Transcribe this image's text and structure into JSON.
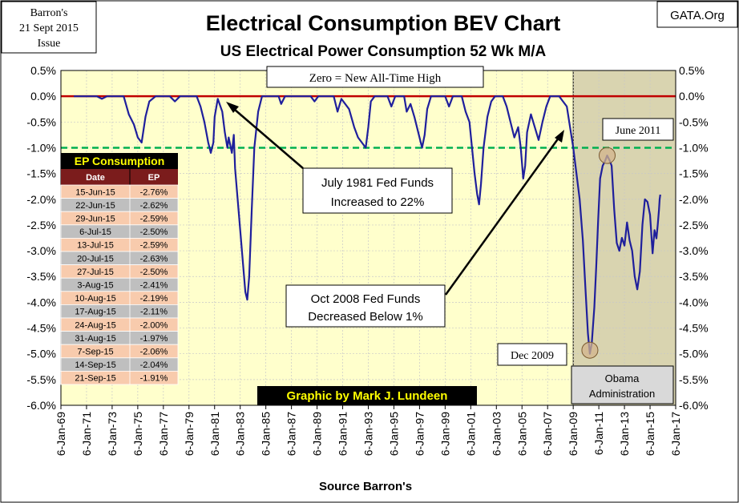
{
  "chart_data": {
    "type": "line",
    "title": "Electrical Consumption BEV Chart",
    "subtitle": "US Electrical Power Consumption 52 Wk M/A",
    "xlabel": "Source Barron's",
    "ylabel": "",
    "ylim": [
      -6.0,
      0.5
    ],
    "y_ticks": [
      "0.5%",
      "0.0%",
      "-0.5%",
      "-1.0%",
      "-1.5%",
      "-2.0%",
      "-2.5%",
      "-3.0%",
      "-3.5%",
      "-4.0%",
      "-4.5%",
      "-5.0%",
      "-5.5%",
      "-6.0%"
    ],
    "x_ticks": [
      "6-Jan-69",
      "6-Jan-71",
      "6-Jan-73",
      "6-Jan-75",
      "6-Jan-77",
      "6-Jan-79",
      "6-Jan-81",
      "6-Jan-83",
      "6-Jan-85",
      "6-Jan-87",
      "6-Jan-89",
      "6-Jan-91",
      "6-Jan-93",
      "6-Jan-95",
      "6-Jan-97",
      "6-Jan-99",
      "6-Jan-01",
      "6-Jan-03",
      "6-Jan-05",
      "6-Jan-07",
      "6-Jan-09",
      "6-Jan-11",
      "6-Jan-13",
      "6-Jan-15",
      "6-Jan-17"
    ],
    "grid": true,
    "reference_lines": [
      {
        "y": 0.0,
        "color": "#c00000",
        "style": "solid"
      },
      {
        "y": -1.0,
        "color": "#00b050",
        "style": "dashed"
      }
    ],
    "shaded_region": {
      "x_start": "Jan-09",
      "x_end": "Jan-17",
      "label": "Obama Administration"
    },
    "series": [
      {
        "color": "#1f1f9c",
        "points": [
          [
            1970.0,
            0.0
          ],
          [
            1971.8,
            0.0
          ],
          [
            1972.2,
            -0.05
          ],
          [
            1972.6,
            0.0
          ],
          [
            1973.9,
            0.0
          ],
          [
            1974.3,
            -0.35
          ],
          [
            1974.7,
            -0.55
          ],
          [
            1975.0,
            -0.8
          ],
          [
            1975.3,
            -0.9
          ],
          [
            1975.6,
            -0.4
          ],
          [
            1975.9,
            -0.1
          ],
          [
            1976.4,
            0.0
          ],
          [
            1977.5,
            0.0
          ],
          [
            1977.9,
            -0.1
          ],
          [
            1978.3,
            0.0
          ],
          [
            1979.6,
            0.0
          ],
          [
            1979.9,
            -0.2
          ],
          [
            1980.2,
            -0.5
          ],
          [
            1980.5,
            -0.9
          ],
          [
            1980.7,
            -1.1
          ],
          [
            1980.9,
            -0.9
          ],
          [
            1981.0,
            -0.4
          ],
          [
            1981.25,
            -0.05
          ],
          [
            1981.6,
            -0.3
          ],
          [
            1981.8,
            -0.7
          ],
          [
            1982.0,
            -1.0
          ],
          [
            1982.1,
            -0.8
          ],
          [
            1982.35,
            -1.1
          ],
          [
            1982.5,
            -0.75
          ],
          [
            1982.6,
            -1.4
          ],
          [
            1982.8,
            -2.0
          ],
          [
            1983.0,
            -2.6
          ],
          [
            1983.2,
            -3.2
          ],
          [
            1983.4,
            -3.8
          ],
          [
            1983.55,
            -3.95
          ],
          [
            1983.7,
            -3.5
          ],
          [
            1983.9,
            -2.2
          ],
          [
            1984.1,
            -1.0
          ],
          [
            1984.4,
            -0.3
          ],
          [
            1984.7,
            0.0
          ],
          [
            1986.0,
            0.0
          ],
          [
            1986.2,
            -0.15
          ],
          [
            1986.5,
            0.0
          ],
          [
            1988.5,
            0.0
          ],
          [
            1988.8,
            -0.1
          ],
          [
            1989.1,
            0.0
          ],
          [
            1990.3,
            0.0
          ],
          [
            1990.6,
            -0.3
          ],
          [
            1990.9,
            -0.05
          ],
          [
            1991.5,
            -0.25
          ],
          [
            1991.9,
            -0.6
          ],
          [
            1992.2,
            -0.8
          ],
          [
            1992.5,
            -0.9
          ],
          [
            1992.8,
            -1.0
          ],
          [
            1993.0,
            -0.6
          ],
          [
            1993.2,
            -0.1
          ],
          [
            1993.5,
            0.0
          ],
          [
            1994.5,
            0.0
          ],
          [
            1994.8,
            -0.2
          ],
          [
            1995.1,
            0.0
          ],
          [
            1995.8,
            0.0
          ],
          [
            1996.0,
            -0.3
          ],
          [
            1996.3,
            -0.15
          ],
          [
            1996.6,
            -0.4
          ],
          [
            1996.9,
            -0.7
          ],
          [
            1997.2,
            -1.0
          ],
          [
            1997.4,
            -0.75
          ],
          [
            1997.6,
            -0.25
          ],
          [
            1997.9,
            0.0
          ],
          [
            1999.0,
            0.0
          ],
          [
            1999.3,
            -0.2
          ],
          [
            1999.6,
            0.0
          ],
          [
            2000.3,
            0.0
          ],
          [
            2000.6,
            -0.3
          ],
          [
            2000.9,
            -0.5
          ],
          [
            2001.1,
            -1.0
          ],
          [
            2001.3,
            -1.5
          ],
          [
            2001.5,
            -1.9
          ],
          [
            2001.65,
            -2.1
          ],
          [
            2001.8,
            -1.7
          ],
          [
            2002.0,
            -1.0
          ],
          [
            2002.3,
            -0.4
          ],
          [
            2002.6,
            -0.1
          ],
          [
            2002.9,
            0.0
          ],
          [
            2003.5,
            0.0
          ],
          [
            2003.8,
            -0.2
          ],
          [
            2004.1,
            -0.5
          ],
          [
            2004.4,
            -0.8
          ],
          [
            2004.7,
            -0.6
          ],
          [
            2004.9,
            -1.0
          ],
          [
            2005.1,
            -1.6
          ],
          [
            2005.25,
            -1.35
          ],
          [
            2005.4,
            -0.7
          ],
          [
            2005.7,
            -0.35
          ],
          [
            2006.0,
            -0.6
          ],
          [
            2006.3,
            -0.85
          ],
          [
            2006.6,
            -0.5
          ],
          [
            2006.9,
            -0.2
          ],
          [
            2007.2,
            0.0
          ],
          [
            2007.9,
            0.0
          ],
          [
            2008.2,
            -0.1
          ],
          [
            2008.5,
            -0.2
          ],
          [
            2008.75,
            -0.6
          ],
          [
            2009.0,
            -1.0
          ],
          [
            2009.25,
            -1.5
          ],
          [
            2009.5,
            -2.0
          ],
          [
            2009.75,
            -2.8
          ],
          [
            2009.95,
            -3.7
          ],
          [
            2010.15,
            -4.6
          ],
          [
            2010.3,
            -5.0
          ],
          [
            2010.45,
            -4.8
          ],
          [
            2010.65,
            -4.1
          ],
          [
            2010.8,
            -3.3
          ],
          [
            2010.95,
            -2.4
          ],
          [
            2011.1,
            -1.6
          ],
          [
            2011.3,
            -1.35
          ],
          [
            2011.5,
            -1.25
          ],
          [
            2011.65,
            -1.15
          ],
          [
            2011.85,
            -1.25
          ],
          [
            2012.0,
            -1.35
          ],
          [
            2012.2,
            -2.2
          ],
          [
            2012.4,
            -2.85
          ],
          [
            2012.6,
            -3.0
          ],
          [
            2012.8,
            -2.75
          ],
          [
            2013.0,
            -2.9
          ],
          [
            2013.2,
            -2.45
          ],
          [
            2013.4,
            -2.8
          ],
          [
            2013.6,
            -3.0
          ],
          [
            2013.8,
            -3.5
          ],
          [
            2014.0,
            -3.75
          ],
          [
            2014.2,
            -3.4
          ],
          [
            2014.4,
            -2.5
          ],
          [
            2014.6,
            -2.0
          ],
          [
            2014.8,
            -2.05
          ],
          [
            2015.0,
            -2.3
          ],
          [
            2015.2,
            -3.05
          ],
          [
            2015.35,
            -2.6
          ],
          [
            2015.5,
            -2.76
          ],
          [
            2015.6,
            -2.5
          ],
          [
            2015.7,
            -2.2
          ],
          [
            2015.75,
            -2.0
          ],
          [
            2015.8,
            -1.91
          ]
        ]
      }
    ]
  },
  "badge_left": {
    "line1": "Barron's",
    "line2": "21 Sept 2015",
    "line3": "Issue"
  },
  "badge_right": "GATA.Org",
  "annotations": {
    "zero_label": "Zero = New All-Time High",
    "july1981_line1": "July 1981 Fed Funds",
    "july1981_line2": "Increased to 22%",
    "oct2008_line1": "Oct 2008 Fed Funds",
    "oct2008_line2": "Decreased Below 1%",
    "june2011": "June 2011",
    "dec2009": "Dec 2009",
    "obama_line1": "Obama",
    "obama_line2": "Administration",
    "credit": "Graphic by Mark J. Lundeen"
  },
  "table": {
    "title": "EP Consumption",
    "headers": [
      "Date",
      "EP"
    ],
    "rows": [
      [
        "15-Jun-15",
        "-2.76%"
      ],
      [
        "22-Jun-15",
        "-2.62%"
      ],
      [
        "29-Jun-15",
        "-2.59%"
      ],
      [
        "6-Jul-15",
        "-2.50%"
      ],
      [
        "13-Jul-15",
        "-2.59%"
      ],
      [
        "20-Jul-15",
        "-2.63%"
      ],
      [
        "27-Jul-15",
        "-2.50%"
      ],
      [
        "3-Aug-15",
        "-2.41%"
      ],
      [
        "10-Aug-15",
        "-2.19%"
      ],
      [
        "17-Aug-15",
        "-2.11%"
      ],
      [
        "24-Aug-15",
        "-2.00%"
      ],
      [
        "31-Aug-15",
        "-1.97%"
      ],
      [
        "7-Sep-15",
        "-2.06%"
      ],
      [
        "14-Sep-15",
        "-2.04%"
      ],
      [
        "21-Sep-15",
        "-1.91%"
      ]
    ]
  },
  "colors": {
    "plot_bg": "#ffffcc",
    "shaded_bg": "#d9d4b0",
    "series": "#1f1f9c",
    "zero_line": "#c00000",
    "minus_one_line": "#00b050",
    "table_title_bg": "#000000",
    "table_title_text": "#ffff00",
    "table_header_bg": "#7b1c1c",
    "row_gray": "#bfbfbf",
    "row_peach": "#f8cbad",
    "credit_bg": "#000000",
    "credit_text": "#ffff00",
    "circle_fill": "#d2b48c"
  }
}
